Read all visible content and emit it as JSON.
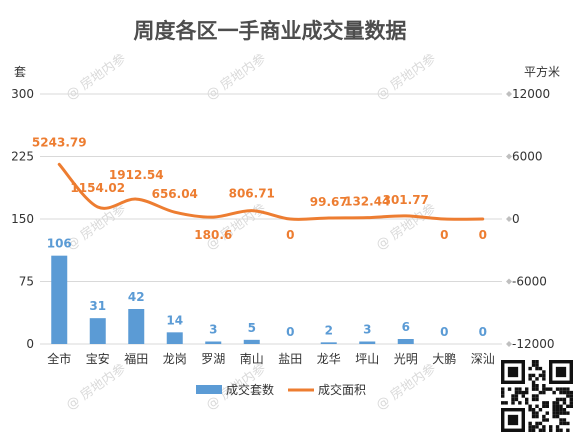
{
  "chart_data": {
    "type": "bar+line",
    "title": "周度各区一手商业成交量数据",
    "ylabel_left": "套",
    "ylabel_right": "平方米",
    "ylim_left": [
      0,
      300
    ],
    "yticks_left": [
      "0",
      "75",
      "150",
      "225",
      "300"
    ],
    "ylim_right": [
      -12000,
      12000
    ],
    "yticks_right": [
      "-12000",
      "-6000",
      "0",
      "6000",
      "12000"
    ],
    "categories": [
      "全市",
      "宝安",
      "福田",
      "龙岗",
      "罗湖",
      "南山",
      "盐田",
      "龙华",
      "坪山",
      "光明",
      "大鹏",
      "深汕"
    ],
    "series": [
      {
        "name": "成交套数",
        "type": "bar",
        "axis": "left",
        "color": "#5b9bd5",
        "values": [
          106,
          31,
          42,
          14,
          3,
          5,
          0,
          2,
          3,
          6,
          0,
          0
        ],
        "labels": [
          "106",
          "31",
          "42",
          "14",
          "3",
          "5",
          "0",
          "2",
          "3",
          "6",
          "0",
          "0"
        ]
      },
      {
        "name": "成交面积",
        "type": "line",
        "axis": "right",
        "color": "#ed7d31",
        "values": [
          5243.79,
          1154.02,
          1912.54,
          656.04,
          180.6,
          806.71,
          0,
          99.67,
          132.44,
          301.77,
          0,
          0
        ],
        "labels": [
          "5243.79",
          "1154.02",
          "1912.54",
          "656.04",
          "180.6",
          "806.71",
          "0",
          "99.67",
          "132.44",
          "301.77",
          "0",
          "0"
        ]
      }
    ],
    "grid": true,
    "legend": "bottom"
  },
  "watermark": "房地内参",
  "qr_icon": "qr-code-icon"
}
